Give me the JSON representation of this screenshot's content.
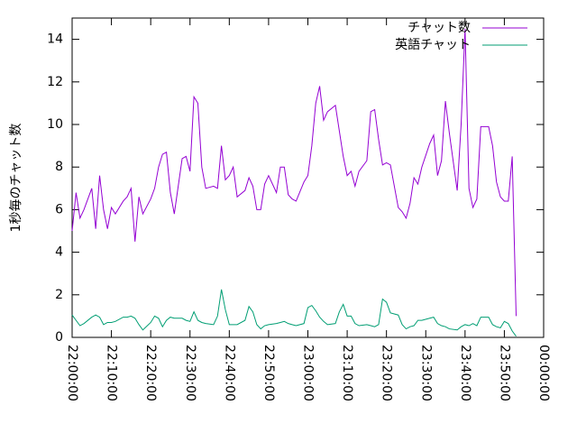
{
  "chart_data": {
    "type": "line",
    "ylabel": "1秒毎のチャット数",
    "x": [
      "22:00:00",
      "22:01:00",
      "22:02:00",
      "22:03:00",
      "22:05:00",
      "22:06:00",
      "22:07:00",
      "22:08:00",
      "22:09:00",
      "22:10:00",
      "22:11:00",
      "22:13:00",
      "22:14:00",
      "22:15:00",
      "22:16:00",
      "22:17:00",
      "22:18:00",
      "22:20:00",
      "22:21:00",
      "22:22:00",
      "22:23:00",
      "22:24:00",
      "22:25:00",
      "22:26:00",
      "22:28:00",
      "22:29:00",
      "22:30:00",
      "22:31:00",
      "22:32:00",
      "22:33:00",
      "22:34:00",
      "22:36:00",
      "22:37:00",
      "22:38:00",
      "22:39:00",
      "22:40:00",
      "22:41:00",
      "22:42:00",
      "22:44:00",
      "22:45:00",
      "22:46:00",
      "22:47:00",
      "22:48:00",
      "22:49:00",
      "22:50:00",
      "22:52:00",
      "22:53:00",
      "22:54:00",
      "22:55:00",
      "22:56:00",
      "22:57:00",
      "22:59:00",
      "23:00:00",
      "23:01:00",
      "23:02:00",
      "23:03:00",
      "23:04:00",
      "23:05:00",
      "23:07:00",
      "23:08:00",
      "23:09:00",
      "23:10:00",
      "23:11:00",
      "23:12:00",
      "23:13:00",
      "23:15:00",
      "23:16:00",
      "23:17:00",
      "23:18:00",
      "23:19:00",
      "23:20:00",
      "23:21:00",
      "23:23:00",
      "23:24:00",
      "23:25:00",
      "23:26:00",
      "23:27:00",
      "23:28:00",
      "23:29:00",
      "23:31:00",
      "23:32:00",
      "23:33:00",
      "23:34:00",
      "23:35:00",
      "23:36:00",
      "23:38:00",
      "23:39:00",
      "23:40:00",
      "23:41:00",
      "23:42:00",
      "23:43:00",
      "23:44:00",
      "23:46:00",
      "23:47:00",
      "23:48:00",
      "23:49:00",
      "23:50:00",
      "23:51:00",
      "23:52:00",
      "23:53:00"
    ],
    "series": [
      {
        "name": "チャット数",
        "color": "#9400d3",
        "values": [
          5.0,
          6.8,
          5.6,
          6.0,
          7.0,
          5.1,
          7.6,
          6.0,
          5.1,
          6.1,
          5.8,
          6.4,
          6.6,
          7.0,
          4.5,
          6.6,
          5.8,
          6.5,
          7.0,
          8.0,
          8.6,
          8.7,
          6.8,
          5.8,
          8.4,
          8.5,
          7.8,
          11.3,
          11.0,
          8.0,
          7.0,
          7.1,
          7.0,
          9.0,
          7.4,
          7.6,
          8.0,
          6.6,
          6.9,
          7.5,
          7.1,
          6.0,
          6.0,
          7.2,
          7.6,
          6.8,
          8.0,
          8.0,
          6.7,
          6.5,
          6.4,
          7.3,
          7.6,
          9.0,
          11.0,
          11.8,
          10.2,
          10.6,
          10.9,
          9.7,
          8.5,
          7.6,
          7.8,
          7.1,
          7.8,
          8.3,
          10.6,
          10.7,
          9.3,
          8.1,
          8.2,
          8.1,
          6.1,
          5.9,
          5.6,
          6.3,
          7.5,
          7.2,
          8.0,
          9.1,
          9.5,
          7.6,
          8.3,
          11.1,
          9.6,
          6.9,
          10.0,
          14.5,
          7.0,
          6.1,
          6.5,
          9.9,
          9.9,
          9.0,
          7.3,
          6.6,
          6.4,
          6.4,
          8.5,
          1.0
        ]
      },
      {
        "name": "英語チャット",
        "color": "#009e73",
        "values": [
          1.05,
          0.8,
          0.55,
          0.65,
          0.95,
          1.05,
          0.95,
          0.6,
          0.7,
          0.7,
          0.75,
          0.95,
          0.95,
          1.0,
          0.9,
          0.6,
          0.35,
          0.7,
          1.0,
          0.9,
          0.5,
          0.8,
          0.95,
          0.9,
          0.9,
          0.8,
          0.75,
          1.2,
          0.8,
          0.7,
          0.65,
          0.6,
          1.0,
          2.25,
          1.3,
          0.6,
          0.6,
          0.6,
          0.8,
          1.45,
          1.2,
          0.6,
          0.4,
          0.55,
          0.6,
          0.65,
          0.7,
          0.75,
          0.65,
          0.6,
          0.55,
          0.65,
          1.4,
          1.5,
          1.25,
          0.95,
          0.75,
          0.6,
          0.65,
          1.2,
          1.55,
          1.0,
          1.0,
          0.65,
          0.55,
          0.6,
          0.55,
          0.5,
          0.6,
          1.8,
          1.65,
          1.15,
          1.05,
          0.6,
          0.4,
          0.5,
          0.55,
          0.8,
          0.8,
          0.9,
          0.95,
          0.65,
          0.55,
          0.5,
          0.4,
          0.35,
          0.5,
          0.6,
          0.55,
          0.65,
          0.55,
          0.95,
          0.95,
          0.6,
          0.5,
          0.45,
          0.75,
          0.65,
          0.3,
          0.05
        ]
      }
    ],
    "xlim": [
      "22:00:00",
      "00:00:00"
    ],
    "xticks": [
      "22:00:00",
      "22:10:00",
      "22:20:00",
      "22:30:00",
      "22:40:00",
      "22:50:00",
      "23:00:00",
      "23:10:00",
      "23:20:00",
      "23:30:00",
      "23:40:00",
      "23:50:00",
      "00:00:00"
    ],
    "ylim": [
      0,
      15
    ],
    "yticks": [
      0,
      2,
      4,
      6,
      8,
      10,
      12,
      14
    ],
    "grid": false,
    "legend": "top-right"
  }
}
